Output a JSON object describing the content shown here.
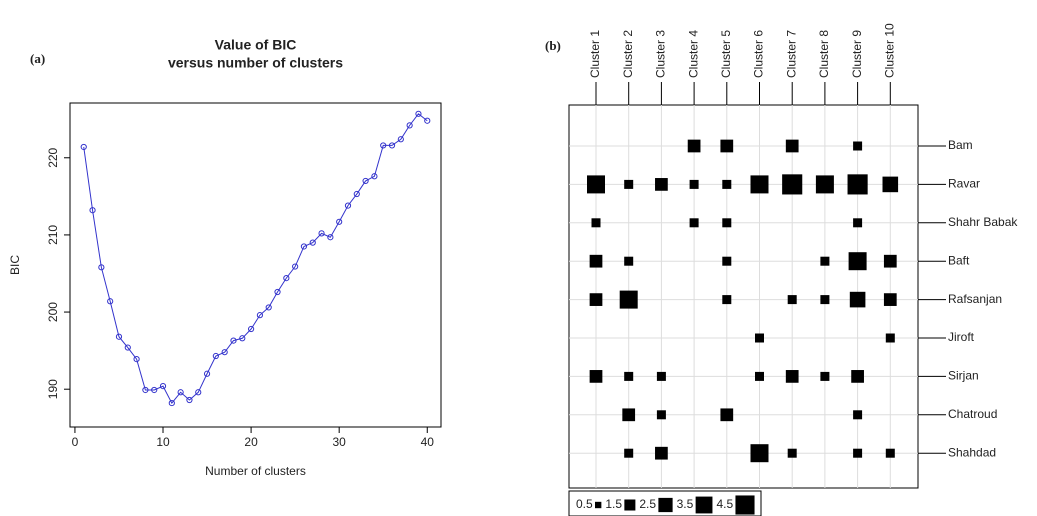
{
  "chart_data": [
    {
      "type": "line",
      "panel_label": "(a)",
      "title": [
        "Value of BIC",
        "versus number of clusters"
      ],
      "x_label": "Number of clusters",
      "y_label": "BIC",
      "color": "#3333cc",
      "x": [
        1,
        2,
        3,
        4,
        5,
        6,
        7,
        8,
        9,
        10,
        11,
        12,
        13,
        14,
        15,
        16,
        17,
        18,
        19,
        20,
        21,
        22,
        23,
        24,
        25,
        26,
        27,
        28,
        29,
        30,
        31,
        32,
        33,
        34,
        35,
        36,
        37,
        38,
        39,
        40
      ],
      "values": [
        221.4,
        213.2,
        205.8,
        201.4,
        196.8,
        195.4,
        193.9,
        189.9,
        189.9,
        190.4,
        188.2,
        189.6,
        188.6,
        189.6,
        192.0,
        194.3,
        194.8,
        196.3,
        196.6,
        197.8,
        199.6,
        200.6,
        202.6,
        204.4,
        205.9,
        208.5,
        209.0,
        210.2,
        209.7,
        211.7,
        213.8,
        215.3,
        217.0,
        217.6,
        221.6,
        221.6,
        222.4,
        224.2,
        225.7,
        224.8
      ],
      "xlim": [
        -0.56,
        41.56
      ],
      "ylim": [
        185.1,
        227.1
      ],
      "xticks": [
        0,
        10,
        20,
        30,
        40
      ],
      "yticks": [
        190,
        200,
        210,
        220
      ]
    },
    {
      "type": "balloon",
      "panel_label": "(b)",
      "color": "#000000",
      "columns": [
        "Cluster 1",
        "Cluster 2",
        "Cluster 3",
        "Cluster 4",
        "Cluster 5",
        "Cluster 6",
        "Cluster 7",
        "Cluster 8",
        "Cluster 9",
        "Cluster 10"
      ],
      "series": [
        {
          "name": "Bam",
          "values": [
            null,
            null,
            null,
            2,
            2,
            null,
            2,
            null,
            1,
            null
          ]
        },
        {
          "name": "Ravar",
          "values": [
            4,
            1,
            2,
            1,
            1,
            4,
            5,
            4,
            5,
            3
          ]
        },
        {
          "name": "Shahr  Babak",
          "values": [
            1,
            null,
            null,
            1,
            1,
            null,
            null,
            null,
            1,
            null
          ]
        },
        {
          "name": "Baft",
          "values": [
            2,
            1,
            null,
            null,
            1,
            null,
            null,
            1,
            4,
            2
          ]
        },
        {
          "name": "Rafsanjan",
          "values": [
            2,
            4,
            null,
            null,
            1,
            null,
            1,
            1,
            3,
            2
          ]
        },
        {
          "name": "Jiroft",
          "values": [
            null,
            null,
            null,
            null,
            null,
            1,
            null,
            null,
            null,
            1
          ]
        },
        {
          "name": "Sirjan",
          "values": [
            2,
            1,
            1,
            null,
            null,
            1,
            2,
            1,
            2,
            null
          ]
        },
        {
          "name": "Chatroud",
          "values": [
            null,
            2,
            1,
            null,
            2,
            null,
            null,
            null,
            1,
            null
          ]
        },
        {
          "name": "Shahdad",
          "values": [
            null,
            1,
            2,
            null,
            null,
            4,
            1,
            null,
            1,
            1
          ]
        }
      ],
      "size_legend": [
        0.5,
        1.5,
        2.5,
        3.5,
        4.5
      ]
    }
  ]
}
